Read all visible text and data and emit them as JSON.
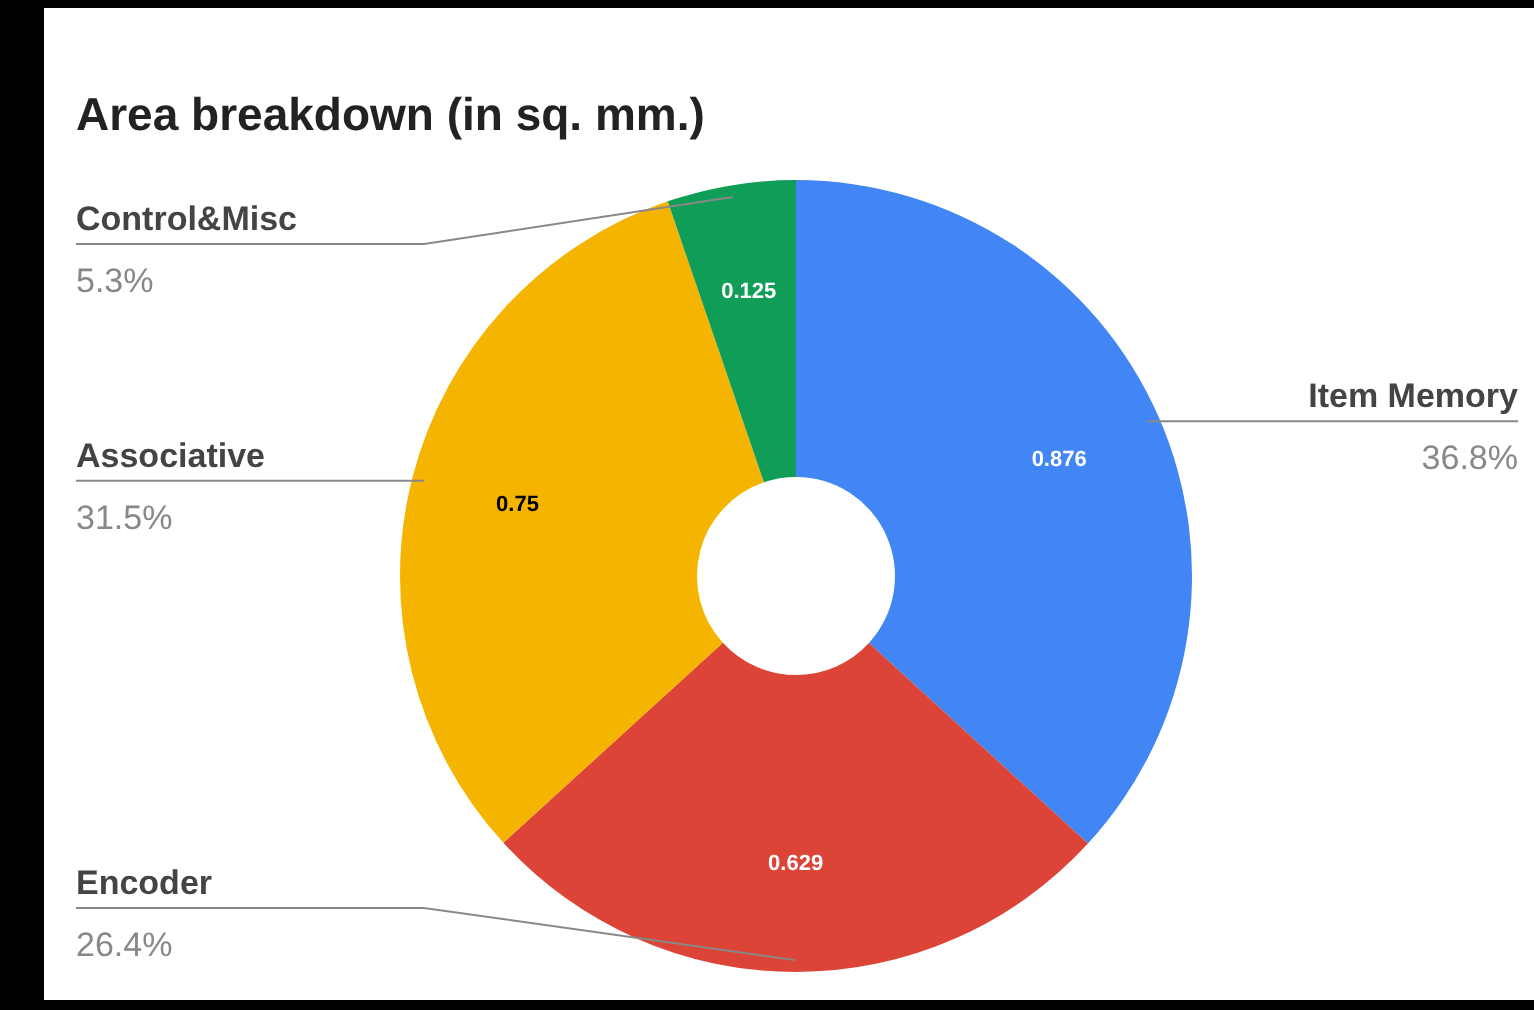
{
  "chart_data": {
    "type": "donut",
    "title": "Area breakdown (in sq. mm.)",
    "categories": [
      "Item Memory",
      "Encoder",
      "Associative",
      "Control&Misc"
    ],
    "values": [
      0.876,
      0.629,
      0.75,
      0.125
    ],
    "colors": [
      "#4285f4",
      "#db4437",
      "#f4b400",
      "#0f9d58"
    ],
    "value_labels": [
      "0.876",
      "0.629",
      "0.75",
      "0.125"
    ],
    "annotations": [
      "36.8%",
      "26.4%",
      "31.5%",
      "5.3%"
    ],
    "legend": false
  }
}
